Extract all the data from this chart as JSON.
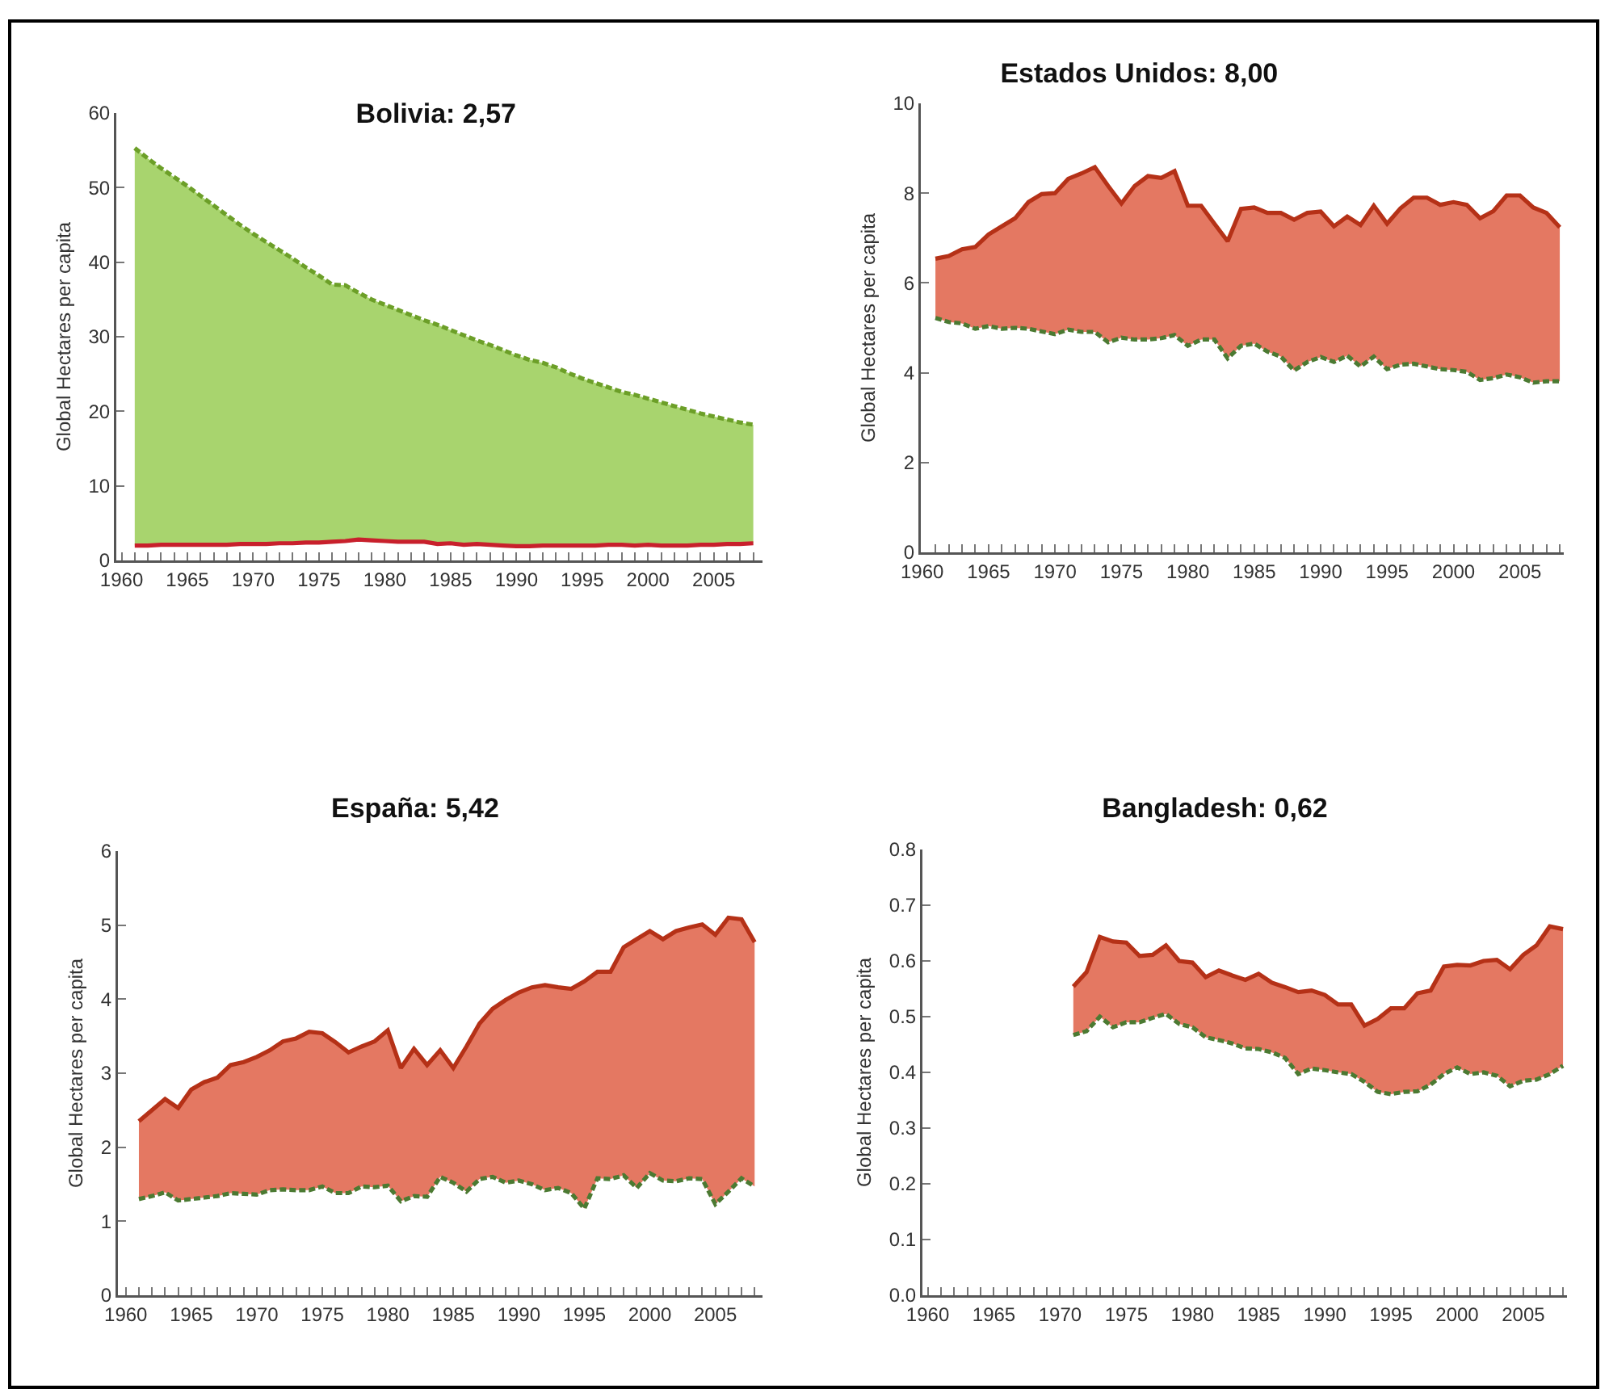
{
  "chart_data": [
    {
      "type": "area",
      "title": "Bolivia: 2,57",
      "ylabel": "Global Hectares per capita",
      "x": [
        1961,
        1962,
        1963,
        1964,
        1965,
        1966,
        1967,
        1968,
        1969,
        1970,
        1971,
        1972,
        1973,
        1974,
        1975,
        1976,
        1977,
        1978,
        1979,
        1980,
        1981,
        1982,
        1983,
        1984,
        1985,
        1986,
        1987,
        1988,
        1989,
        1990,
        1991,
        1992,
        1993,
        1994,
        1995,
        1996,
        1997,
        1998,
        1999,
        2000,
        2001,
        2002,
        2003,
        2004,
        2005,
        2006,
        2007,
        2008
      ],
      "xlim": [
        1959.6,
        2008.7
      ],
      "xticks": [
        1960,
        {
          "value": 1961,
          "label": null
        },
        {
          "value": 1962,
          "label": null
        },
        {
          "value": 1963,
          "label": null
        },
        {
          "value": 1964,
          "label": null
        },
        1965,
        {
          "value": 1966,
          "label": null
        },
        {
          "value": 1967,
          "label": null
        },
        {
          "value": 1968,
          "label": null
        },
        {
          "value": 1969,
          "label": null
        },
        1970,
        {
          "value": 1971,
          "label": null
        },
        {
          "value": 1972,
          "label": null
        },
        {
          "value": 1973,
          "label": null
        },
        {
          "value": 1974,
          "label": null
        },
        1975,
        {
          "value": 1976,
          "label": null
        },
        {
          "value": 1977,
          "label": null
        },
        {
          "value": 1978,
          "label": null
        },
        {
          "value": 1979,
          "label": null
        },
        1980,
        {
          "value": 1981,
          "label": null
        },
        {
          "value": 1982,
          "label": null
        },
        {
          "value": 1983,
          "label": null
        },
        {
          "value": 1984,
          "label": null
        },
        1985,
        {
          "value": 1986,
          "label": null
        },
        {
          "value": 1987,
          "label": null
        },
        {
          "value": 1988,
          "label": null
        },
        {
          "value": 1989,
          "label": null
        },
        1990,
        {
          "value": 1991,
          "label": null
        },
        {
          "value": 1992,
          "label": null
        },
        {
          "value": 1993,
          "label": null
        },
        {
          "value": 1994,
          "label": null
        },
        1995,
        {
          "value": 1996,
          "label": null
        },
        {
          "value": 1997,
          "label": null
        },
        {
          "value": 1998,
          "label": null
        },
        {
          "value": 1999,
          "label": null
        },
        2000,
        {
          "value": 2001,
          "label": null
        },
        {
          "value": 2002,
          "label": null
        },
        {
          "value": 2003,
          "label": null
        },
        {
          "value": 2004,
          "label": null
        },
        2005,
        {
          "value": 2006,
          "label": null
        },
        {
          "value": 2007,
          "label": null
        },
        {
          "value": 2008,
          "label": null
        }
      ],
      "ylim": [
        0,
        60
      ],
      "yticks": [
        0,
        10,
        20,
        30,
        40,
        50,
        60
      ],
      "series": [
        {
          "type": "line",
          "color": "#c8202c",
          "line_style": "solid",
          "values": [
            2.0,
            2.0,
            2.1,
            2.1,
            2.1,
            2.1,
            2.1,
            2.1,
            2.2,
            2.2,
            2.2,
            2.3,
            2.3,
            2.4,
            2.4,
            2.5,
            2.6,
            2.8,
            2.7,
            2.6,
            2.5,
            2.5,
            2.5,
            2.2,
            2.3,
            2.1,
            2.2,
            2.1,
            2.0,
            1.9,
            1.9,
            2.0,
            2.0,
            2.0,
            2.0,
            2.0,
            2.1,
            2.1,
            2.0,
            2.1,
            2.0,
            2.0,
            2.0,
            2.1,
            2.1,
            2.2,
            2.2,
            2.3
          ]
        },
        {
          "type": "area",
          "color": "#a8d46e",
          "line_style": "dashed",
          "values": [
            55.3,
            53.9,
            52.6,
            51.4,
            50.2,
            48.9,
            47.6,
            46.3,
            45.0,
            43.8,
            42.7,
            41.6,
            40.5,
            39.3,
            38.2,
            37.0,
            36.9,
            35.9,
            35.0,
            34.3,
            33.6,
            32.9,
            32.2,
            31.6,
            30.9,
            30.2,
            29.5,
            28.9,
            28.2,
            27.5,
            26.9,
            26.5,
            25.9,
            25.1,
            24.4,
            23.8,
            23.2,
            22.6,
            22.2,
            21.7,
            21.2,
            20.7,
            20.2,
            19.7,
            19.3,
            18.9,
            18.5,
            18.2
          ]
        }
      ]
    },
    {
      "type": "area",
      "title": "Estados Unidos: 8,00",
      "ylabel": "Global Hectares per capita",
      "x": [
        1961,
        1962,
        1963,
        1964,
        1965,
        1966,
        1967,
        1968,
        1969,
        1970,
        1971,
        1972,
        1973,
        1974,
        1975,
        1976,
        1977,
        1978,
        1979,
        1980,
        1981,
        1982,
        1983,
        1984,
        1985,
        1986,
        1987,
        1988,
        1989,
        1990,
        1991,
        1992,
        1993,
        1994,
        1995,
        1996,
        1997,
        1998,
        1999,
        2000,
        2001,
        2002,
        2003,
        2004,
        2005,
        2006,
        2007,
        2008
      ],
      "xlim": [
        1959.9,
        2008.3
      ],
      "xticks": [
        1960,
        {
          "value": 1961,
          "label": null
        },
        {
          "value": 1962,
          "label": null
        },
        {
          "value": 1963,
          "label": null
        },
        {
          "value": 1964,
          "label": null
        },
        1965,
        {
          "value": 1966,
          "label": null
        },
        {
          "value": 1967,
          "label": null
        },
        {
          "value": 1968,
          "label": null
        },
        {
          "value": 1969,
          "label": null
        },
        1970,
        {
          "value": 1971,
          "label": null
        },
        {
          "value": 1972,
          "label": null
        },
        {
          "value": 1973,
          "label": null
        },
        {
          "value": 1974,
          "label": null
        },
        1975,
        {
          "value": 1976,
          "label": null
        },
        {
          "value": 1977,
          "label": null
        },
        {
          "value": 1978,
          "label": null
        },
        {
          "value": 1979,
          "label": null
        },
        1980,
        {
          "value": 1981,
          "label": null
        },
        {
          "value": 1982,
          "label": null
        },
        {
          "value": 1983,
          "label": null
        },
        {
          "value": 1984,
          "label": null
        },
        1985,
        {
          "value": 1986,
          "label": null
        },
        {
          "value": 1987,
          "label": null
        },
        {
          "value": 1988,
          "label": null
        },
        {
          "value": 1989,
          "label": null
        },
        1990,
        {
          "value": 1991,
          "label": null
        },
        {
          "value": 1992,
          "label": null
        },
        {
          "value": 1993,
          "label": null
        },
        {
          "value": 1994,
          "label": null
        },
        1995,
        {
          "value": 1996,
          "label": null
        },
        {
          "value": 1997,
          "label": null
        },
        {
          "value": 1998,
          "label": null
        },
        {
          "value": 1999,
          "label": null
        },
        2000,
        {
          "value": 2001,
          "label": null
        },
        {
          "value": 2002,
          "label": null
        },
        {
          "value": 2003,
          "label": null
        },
        {
          "value": 2004,
          "label": null
        },
        2005,
        {
          "value": 2006,
          "label": null
        },
        {
          "value": 2007,
          "label": null
        },
        {
          "value": 2008,
          "label": null
        }
      ],
      "ylim": [
        0,
        10
      ],
      "yticks": [
        0,
        2,
        4,
        6,
        8,
        10
      ],
      "series": [
        {
          "type": "line",
          "color": "#4b7a32",
          "line_style": "dashed",
          "values": [
            5.22,
            5.13,
            5.1,
            4.98,
            5.04,
            4.98,
            5.0,
            4.98,
            4.92,
            4.86,
            4.96,
            4.91,
            4.91,
            4.68,
            4.78,
            4.74,
            4.74,
            4.77,
            4.84,
            4.6,
            4.74,
            4.74,
            4.32,
            4.6,
            4.65,
            4.47,
            4.36,
            4.05,
            4.24,
            4.35,
            4.24,
            4.38,
            4.14,
            4.36,
            4.08,
            4.18,
            4.2,
            4.14,
            4.08,
            4.06,
            4.02,
            3.84,
            3.88,
            3.96,
            3.9,
            3.78,
            3.81,
            3.81
          ]
        },
        {
          "type": "area",
          "color": "#e47862",
          "line_style": "solid",
          "values": [
            6.54,
            6.6,
            6.75,
            6.8,
            7.08,
            7.26,
            7.44,
            7.8,
            7.98,
            8.0,
            8.32,
            8.44,
            8.58,
            8.16,
            7.77,
            8.16,
            8.38,
            8.34,
            8.49,
            7.72,
            7.72,
            7.32,
            6.93,
            7.65,
            7.68,
            7.56,
            7.56,
            7.41,
            7.56,
            7.59,
            7.26,
            7.48,
            7.29,
            7.72,
            7.32,
            7.66,
            7.9,
            7.9,
            7.74,
            7.8,
            7.74,
            7.44,
            7.6,
            7.95,
            7.95,
            7.68,
            7.56,
            7.24
          ]
        }
      ]
    },
    {
      "type": "area",
      "title": "España: 5,42",
      "ylabel": "Global Hectares per capita",
      "x": [
        1961,
        1962,
        1963,
        1964,
        1965,
        1966,
        1967,
        1968,
        1969,
        1970,
        1971,
        1972,
        1973,
        1974,
        1975,
        1976,
        1977,
        1978,
        1979,
        1980,
        1981,
        1982,
        1983,
        1984,
        1985,
        1986,
        1987,
        1988,
        1989,
        1990,
        1991,
        1992,
        1993,
        1994,
        1995,
        1996,
        1997,
        1998,
        1999,
        2000,
        2001,
        2002,
        2003,
        2004,
        2005,
        2006,
        2007,
        2008
      ],
      "xlim": [
        1959.4,
        2008.6
      ],
      "xticks": [
        1960,
        {
          "value": 1961,
          "label": null
        },
        {
          "value": 1962,
          "label": null
        },
        {
          "value": 1963,
          "label": null
        },
        {
          "value": 1964,
          "label": null
        },
        1965,
        {
          "value": 1966,
          "label": null
        },
        {
          "value": 1967,
          "label": null
        },
        {
          "value": 1968,
          "label": null
        },
        {
          "value": 1969,
          "label": null
        },
        1970,
        {
          "value": 1971,
          "label": null
        },
        {
          "value": 1972,
          "label": null
        },
        {
          "value": 1973,
          "label": null
        },
        {
          "value": 1974,
          "label": null
        },
        1975,
        {
          "value": 1976,
          "label": null
        },
        {
          "value": 1977,
          "label": null
        },
        {
          "value": 1978,
          "label": null
        },
        {
          "value": 1979,
          "label": null
        },
        1980,
        {
          "value": 1981,
          "label": null
        },
        {
          "value": 1982,
          "label": null
        },
        {
          "value": 1983,
          "label": null
        },
        {
          "value": 1984,
          "label": null
        },
        1985,
        {
          "value": 1986,
          "label": null
        },
        {
          "value": 1987,
          "label": null
        },
        {
          "value": 1988,
          "label": null
        },
        {
          "value": 1989,
          "label": null
        },
        1990,
        {
          "value": 1991,
          "label": null
        },
        {
          "value": 1992,
          "label": null
        },
        {
          "value": 1993,
          "label": null
        },
        {
          "value": 1994,
          "label": null
        },
        1995,
        {
          "value": 1996,
          "label": null
        },
        {
          "value": 1997,
          "label": null
        },
        {
          "value": 1998,
          "label": null
        },
        {
          "value": 1999,
          "label": null
        },
        2000,
        {
          "value": 2001,
          "label": null
        },
        {
          "value": 2002,
          "label": null
        },
        {
          "value": 2003,
          "label": null
        },
        {
          "value": 2004,
          "label": null
        },
        2005,
        {
          "value": 2006,
          "label": null
        },
        {
          "value": 2007,
          "label": null
        },
        {
          "value": 2008,
          "label": null
        }
      ],
      "ylim": [
        0,
        6
      ],
      "yticks": [
        0,
        1,
        2,
        3,
        4,
        5,
        6
      ],
      "series": [
        {
          "type": "line",
          "color": "#4b7a32",
          "line_style": "dashed",
          "values": [
            1.3,
            1.34,
            1.39,
            1.28,
            1.3,
            1.32,
            1.34,
            1.38,
            1.37,
            1.36,
            1.42,
            1.43,
            1.42,
            1.42,
            1.47,
            1.38,
            1.38,
            1.47,
            1.46,
            1.48,
            1.27,
            1.34,
            1.33,
            1.6,
            1.52,
            1.4,
            1.57,
            1.6,
            1.52,
            1.55,
            1.5,
            1.42,
            1.45,
            1.38,
            1.17,
            1.58,
            1.57,
            1.62,
            1.45,
            1.65,
            1.55,
            1.54,
            1.58,
            1.57,
            1.23,
            1.4,
            1.58,
            1.47
          ]
        },
        {
          "type": "area",
          "color": "#e47862",
          "line_style": "solid",
          "values": [
            2.35,
            2.5,
            2.65,
            2.53,
            2.78,
            2.88,
            2.94,
            3.11,
            3.15,
            3.22,
            3.31,
            3.43,
            3.47,
            3.56,
            3.54,
            3.42,
            3.28,
            3.36,
            3.43,
            3.58,
            3.07,
            3.33,
            3.11,
            3.31,
            3.07,
            3.36,
            3.67,
            3.87,
            3.99,
            4.09,
            4.16,
            4.19,
            4.16,
            4.14,
            4.24,
            4.37,
            4.37,
            4.7,
            4.81,
            4.92,
            4.81,
            4.92,
            4.97,
            5.01,
            4.87,
            5.1,
            5.08,
            4.77
          ]
        }
      ]
    },
    {
      "type": "area",
      "title": "Bangladesh: 0,62",
      "ylabel": "Global Hectares per capita",
      "x": [
        1971,
        1972,
        1973,
        1974,
        1975,
        1976,
        1977,
        1978,
        1979,
        1980,
        1981,
        1982,
        1983,
        1984,
        1985,
        1986,
        1987,
        1988,
        1989,
        1990,
        1991,
        1992,
        1993,
        1994,
        1995,
        1996,
        1997,
        1998,
        1999,
        2000,
        2001,
        2002,
        2003,
        2004,
        2005,
        2006,
        2007,
        2008
      ],
      "xlim": [
        1959.6,
        2008.3
      ],
      "xticks": [
        1960,
        {
          "value": 1961,
          "label": null
        },
        {
          "value": 1962,
          "label": null
        },
        {
          "value": 1963,
          "label": null
        },
        {
          "value": 1964,
          "label": null
        },
        1965,
        {
          "value": 1966,
          "label": null
        },
        {
          "value": 1967,
          "label": null
        },
        {
          "value": 1968,
          "label": null
        },
        {
          "value": 1969,
          "label": null
        },
        1970,
        {
          "value": 1971,
          "label": null
        },
        {
          "value": 1972,
          "label": null
        },
        {
          "value": 1973,
          "label": null
        },
        {
          "value": 1974,
          "label": null
        },
        1975,
        {
          "value": 1976,
          "label": null
        },
        {
          "value": 1977,
          "label": null
        },
        {
          "value": 1978,
          "label": null
        },
        {
          "value": 1979,
          "label": null
        },
        1980,
        {
          "value": 1981,
          "label": null
        },
        {
          "value": 1982,
          "label": null
        },
        {
          "value": 1983,
          "label": null
        },
        {
          "value": 1984,
          "label": null
        },
        1985,
        {
          "value": 1986,
          "label": null
        },
        {
          "value": 1987,
          "label": null
        },
        {
          "value": 1988,
          "label": null
        },
        {
          "value": 1989,
          "label": null
        },
        1990,
        {
          "value": 1991,
          "label": null
        },
        {
          "value": 1992,
          "label": null
        },
        {
          "value": 1993,
          "label": null
        },
        {
          "value": 1994,
          "label": null
        },
        1995,
        {
          "value": 1996,
          "label": null
        },
        {
          "value": 1997,
          "label": null
        },
        {
          "value": 1998,
          "label": null
        },
        {
          "value": 1999,
          "label": null
        },
        2000,
        {
          "value": 2001,
          "label": null
        },
        {
          "value": 2002,
          "label": null
        },
        {
          "value": 2003,
          "label": null
        },
        {
          "value": 2004,
          "label": null
        },
        2005,
        {
          "value": 2006,
          "label": null
        },
        {
          "value": 2007,
          "label": null
        },
        {
          "value": 2008,
          "label": null
        }
      ],
      "ylim": [
        0,
        0.8
      ],
      "yticks": [
        {
          "value": 0,
          "label": "0.0"
        },
        0.1,
        0.2,
        0.3,
        0.4,
        0.5,
        0.6,
        0.7,
        0.8
      ],
      "series": [
        {
          "type": "line",
          "color": "#4b7a32",
          "line_style": "dashed",
          "values": [
            0.467,
            0.474,
            0.5,
            0.481,
            0.49,
            0.49,
            0.498,
            0.505,
            0.487,
            0.481,
            0.463,
            0.458,
            0.452,
            0.443,
            0.442,
            0.436,
            0.426,
            0.397,
            0.407,
            0.404,
            0.4,
            0.397,
            0.383,
            0.365,
            0.361,
            0.365,
            0.366,
            0.378,
            0.397,
            0.409,
            0.397,
            0.4,
            0.394,
            0.375,
            0.385,
            0.387,
            0.397,
            0.412
          ]
        },
        {
          "type": "area",
          "color": "#e47862",
          "line_style": "solid",
          "values": [
            0.554,
            0.58,
            0.643,
            0.635,
            0.633,
            0.609,
            0.611,
            0.628,
            0.6,
            0.597,
            0.571,
            0.583,
            0.574,
            0.566,
            0.577,
            0.561,
            0.553,
            0.544,
            0.547,
            0.539,
            0.522,
            0.522,
            0.484,
            0.496,
            0.515,
            0.515,
            0.542,
            0.547,
            0.59,
            0.593,
            0.592,
            0.6,
            0.602,
            0.585,
            0.611,
            0.628,
            0.662,
            0.657
          ]
        }
      ]
    }
  ]
}
